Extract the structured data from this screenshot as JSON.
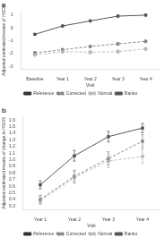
{
  "chart_data": [
    {
      "type": "line",
      "title": "a",
      "categories": [
        "Baseline",
        "Year 1",
        "Year 2",
        "Year 3",
        "Year 4"
      ],
      "series": [
        {
          "name": "Reference",
          "color": "#333333",
          "line_style": "solid",
          "marker": "none",
          "values": [
            null,
            null,
            null,
            null,
            null
          ],
          "errors": [
            null,
            null,
            null,
            null,
            null
          ]
        },
        {
          "name": "Corrected",
          "color": "#888888",
          "line_style": "dashed",
          "marker": "square",
          "values": [
            -1.95,
            -1.7,
            -1.45,
            -1.25,
            -1.05
          ],
          "errors": [
            0.08,
            0.08,
            0.1,
            0.1,
            0.1
          ]
        },
        {
          "name": "Normal",
          "color": "#bbbbbb",
          "line_style": "dashed",
          "marker": "circle",
          "values": [
            -2.1,
            -1.85,
            -1.9,
            -1.85,
            -1.65
          ],
          "errors": [
            0.08,
            0.08,
            0.12,
            0.12,
            0.1
          ]
        },
        {
          "name": "Ranko",
          "color": "#555555",
          "line_style": "solid",
          "marker": "square",
          "values": [
            -0.5,
            0.15,
            0.55,
            0.92,
            1.0
          ],
          "errors": [
            0.05,
            0.05,
            0.05,
            0.05,
            0.05
          ]
        }
      ],
      "xlabel": "Visit",
      "ylabel": "Adjusted estimated means of HSOS",
      "ylim": [
        -3.2,
        1.3
      ],
      "yticks": [
        -3,
        -2,
        -1,
        0,
        1
      ],
      "grid": false,
      "legend": "bottom"
    },
    {
      "type": "line",
      "title": "b",
      "categories": [
        "Year 1",
        "Year 2",
        "Year 3",
        "Year 4"
      ],
      "series": [
        {
          "name": "Reference",
          "color": "#333333",
          "line_style": "solid",
          "marker": "none",
          "values": [
            null,
            null,
            null,
            null
          ],
          "errors": [
            null,
            null,
            null,
            null
          ]
        },
        {
          "name": "Corrected",
          "color": "#888888",
          "line_style": "dashed",
          "marker": "square",
          "values": [
            0.4,
            0.75,
            1.02,
            1.28
          ],
          "errors": [
            0.06,
            0.09,
            0.1,
            0.1
          ]
        },
        {
          "name": "Normal",
          "color": "#bbbbbb",
          "line_style": "dashed",
          "marker": "circle",
          "values": [
            0.38,
            0.73,
            0.98,
            1.05
          ],
          "errors": [
            0.06,
            0.09,
            0.1,
            0.1
          ]
        },
        {
          "name": "Ranko",
          "color": "#555555",
          "line_style": "solid",
          "marker": "square",
          "values": [
            0.62,
            1.06,
            1.35,
            1.48
          ],
          "errors": [
            0.06,
            0.08,
            0.08,
            0.07
          ]
        }
      ],
      "xlabel": "Visit",
      "ylabel": "Adjusted estimated means of change in HSOS",
      "ylim": [
        0.25,
        1.65
      ],
      "yticks": [
        0.3,
        0.4,
        0.5,
        0.6,
        0.7,
        0.8,
        0.9,
        {
          "value": 1.0,
          "label": "1.0"
        },
        1.1,
        1.2,
        1.3,
        1.4,
        1.5,
        1.6
      ],
      "grid": false,
      "legend": "bottom"
    }
  ]
}
